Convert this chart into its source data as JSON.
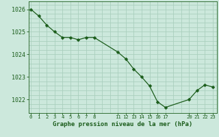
{
  "x": [
    0,
    1,
    2,
    3,
    4,
    5,
    6,
    7,
    8,
    11,
    12,
    13,
    14,
    15,
    16,
    17,
    20,
    21,
    22,
    23
  ],
  "y": [
    1026.0,
    1025.7,
    1025.3,
    1025.0,
    1024.75,
    1024.75,
    1024.65,
    1024.75,
    1024.75,
    1024.1,
    1023.8,
    1023.35,
    1023.0,
    1022.6,
    1021.9,
    1021.65,
    1022.0,
    1022.4,
    1022.65,
    1022.55
  ],
  "line_color": "#1a5c1a",
  "marker": "D",
  "marker_size": 2.5,
  "bg_color": "#cce8dc",
  "grid_color": "#aacfbe",
  "xlabel": "Graphe pression niveau de la mer (hPa)",
  "xlabel_color": "#1a5c1a",
  "tick_color": "#1a5c1a",
  "axis_color": "#1a5c1a",
  "ylim": [
    1021.4,
    1026.35
  ],
  "yticks": [
    1022,
    1023,
    1024,
    1025,
    1026
  ],
  "xtick_positions": [
    0,
    1,
    2,
    3,
    4,
    5,
    6,
    7,
    8,
    11,
    12,
    13,
    14,
    15,
    16,
    17,
    20,
    21,
    22,
    23
  ],
  "xtick_labels": [
    "0",
    "1",
    "2",
    "3",
    "4",
    "5",
    "6",
    "7",
    "8",
    "11",
    "12",
    "13",
    "14",
    "15",
    "16",
    "17",
    "20",
    "21",
    "22",
    "23"
  ],
  "xlim": [
    -0.3,
    23.5
  ]
}
